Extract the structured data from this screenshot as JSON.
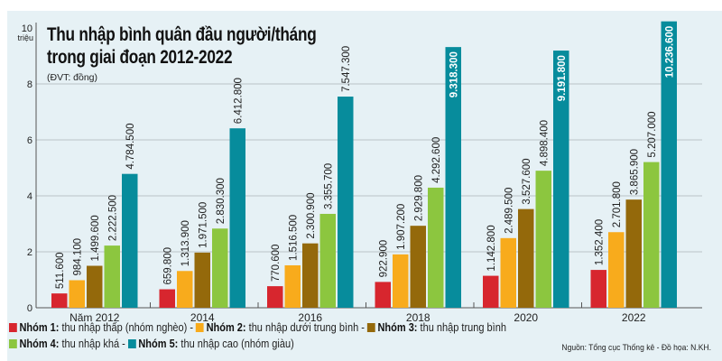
{
  "chart_data": {
    "type": "bar",
    "title": "Thu nhập bình quân đầu người/tháng trong giai đoạn 2012-2022",
    "subtitle": "(ĐVT: đồng)",
    "ylabel": "triệu",
    "ylim": [
      0,
      10
    ],
    "yticks": [
      "0",
      "2",
      "4",
      "6",
      "8",
      "10"
    ],
    "grid": true,
    "legend_position": "bottom",
    "categories": [
      "Năm 2012",
      "2014",
      "2016",
      "2018",
      "2020",
      "2022"
    ],
    "series": [
      {
        "name": "Nhóm 1",
        "desc": "thu nhập thấp (nhóm nghèo)",
        "color": "#d7262e",
        "values": [
          0.5116,
          0.6598,
          0.7706,
          0.9229,
          1.1428,
          1.3524
        ],
        "labels": [
          "511.600",
          "659.800",
          "770.600",
          "922.900",
          "1.142.800",
          "1.352.400"
        ]
      },
      {
        "name": "Nhóm 2",
        "desc": "thu nhập dưới trung bình",
        "color": "#f8ab1c",
        "values": [
          0.9841,
          1.3139,
          1.5165,
          1.9072,
          2.4895,
          2.7018
        ],
        "labels": [
          "984.100",
          "1.313.900",
          "1.516.500",
          "1.907.200",
          "2.489.500",
          "2.701.800"
        ]
      },
      {
        "name": "Nhóm 3",
        "desc": "thu nhập trung bình",
        "color": "#94690b",
        "values": [
          1.4996,
          1.9715,
          2.3009,
          2.9298,
          3.5276,
          3.8659
        ],
        "labels": [
          "1.499.600",
          "1.971.500",
          "2.300.900",
          "2.929.800",
          "3.527.600",
          "3.865.900"
        ]
      },
      {
        "name": "Nhóm 4",
        "desc": "thu nhập khá",
        "color": "#8cc63f",
        "values": [
          2.2225,
          2.8303,
          3.3557,
          4.2926,
          4.8984,
          5.207
        ],
        "labels": [
          "2.222.500",
          "2.830.300",
          "3.355.700",
          "4.292.600",
          "4.898.400",
          "5.207.000"
        ]
      },
      {
        "name": "Nhóm 5",
        "desc": "thu nhập cao (nhóm giàu)",
        "color": "#078c9c",
        "values": [
          4.7845,
          6.4128,
          7.5473,
          9.3183,
          9.1918,
          10.2366
        ],
        "labels": [
          "4.784.500",
          "6.412.800",
          "7.547.300",
          "9.318.300",
          "9.191.800",
          "10.236.600"
        ]
      }
    ]
  },
  "legend": {
    "row1": [
      {
        "name": "Nhóm 1:",
        "desc": "thu nhập thấp (nhóm nghèo) -"
      },
      {
        "name": "Nhóm 2:",
        "desc": "thu nhập dưới trung bình -"
      },
      {
        "name": "Nhóm 3:",
        "desc": "thu nhập trung bình"
      }
    ],
    "row2": [
      {
        "name": "Nhóm 4:",
        "desc": "thu nhập khá -"
      },
      {
        "name": "Nhóm 5:",
        "desc": "thu nhập cao (nhóm giàu)"
      }
    ]
  },
  "title_lines": [
    "Thu nhập bình quân đầu người/tháng",
    "trong giai đoạn 2012-2022"
  ],
  "source": "Nguồn: Tổng cục Thống kê  - Đồ họa: N.KH."
}
